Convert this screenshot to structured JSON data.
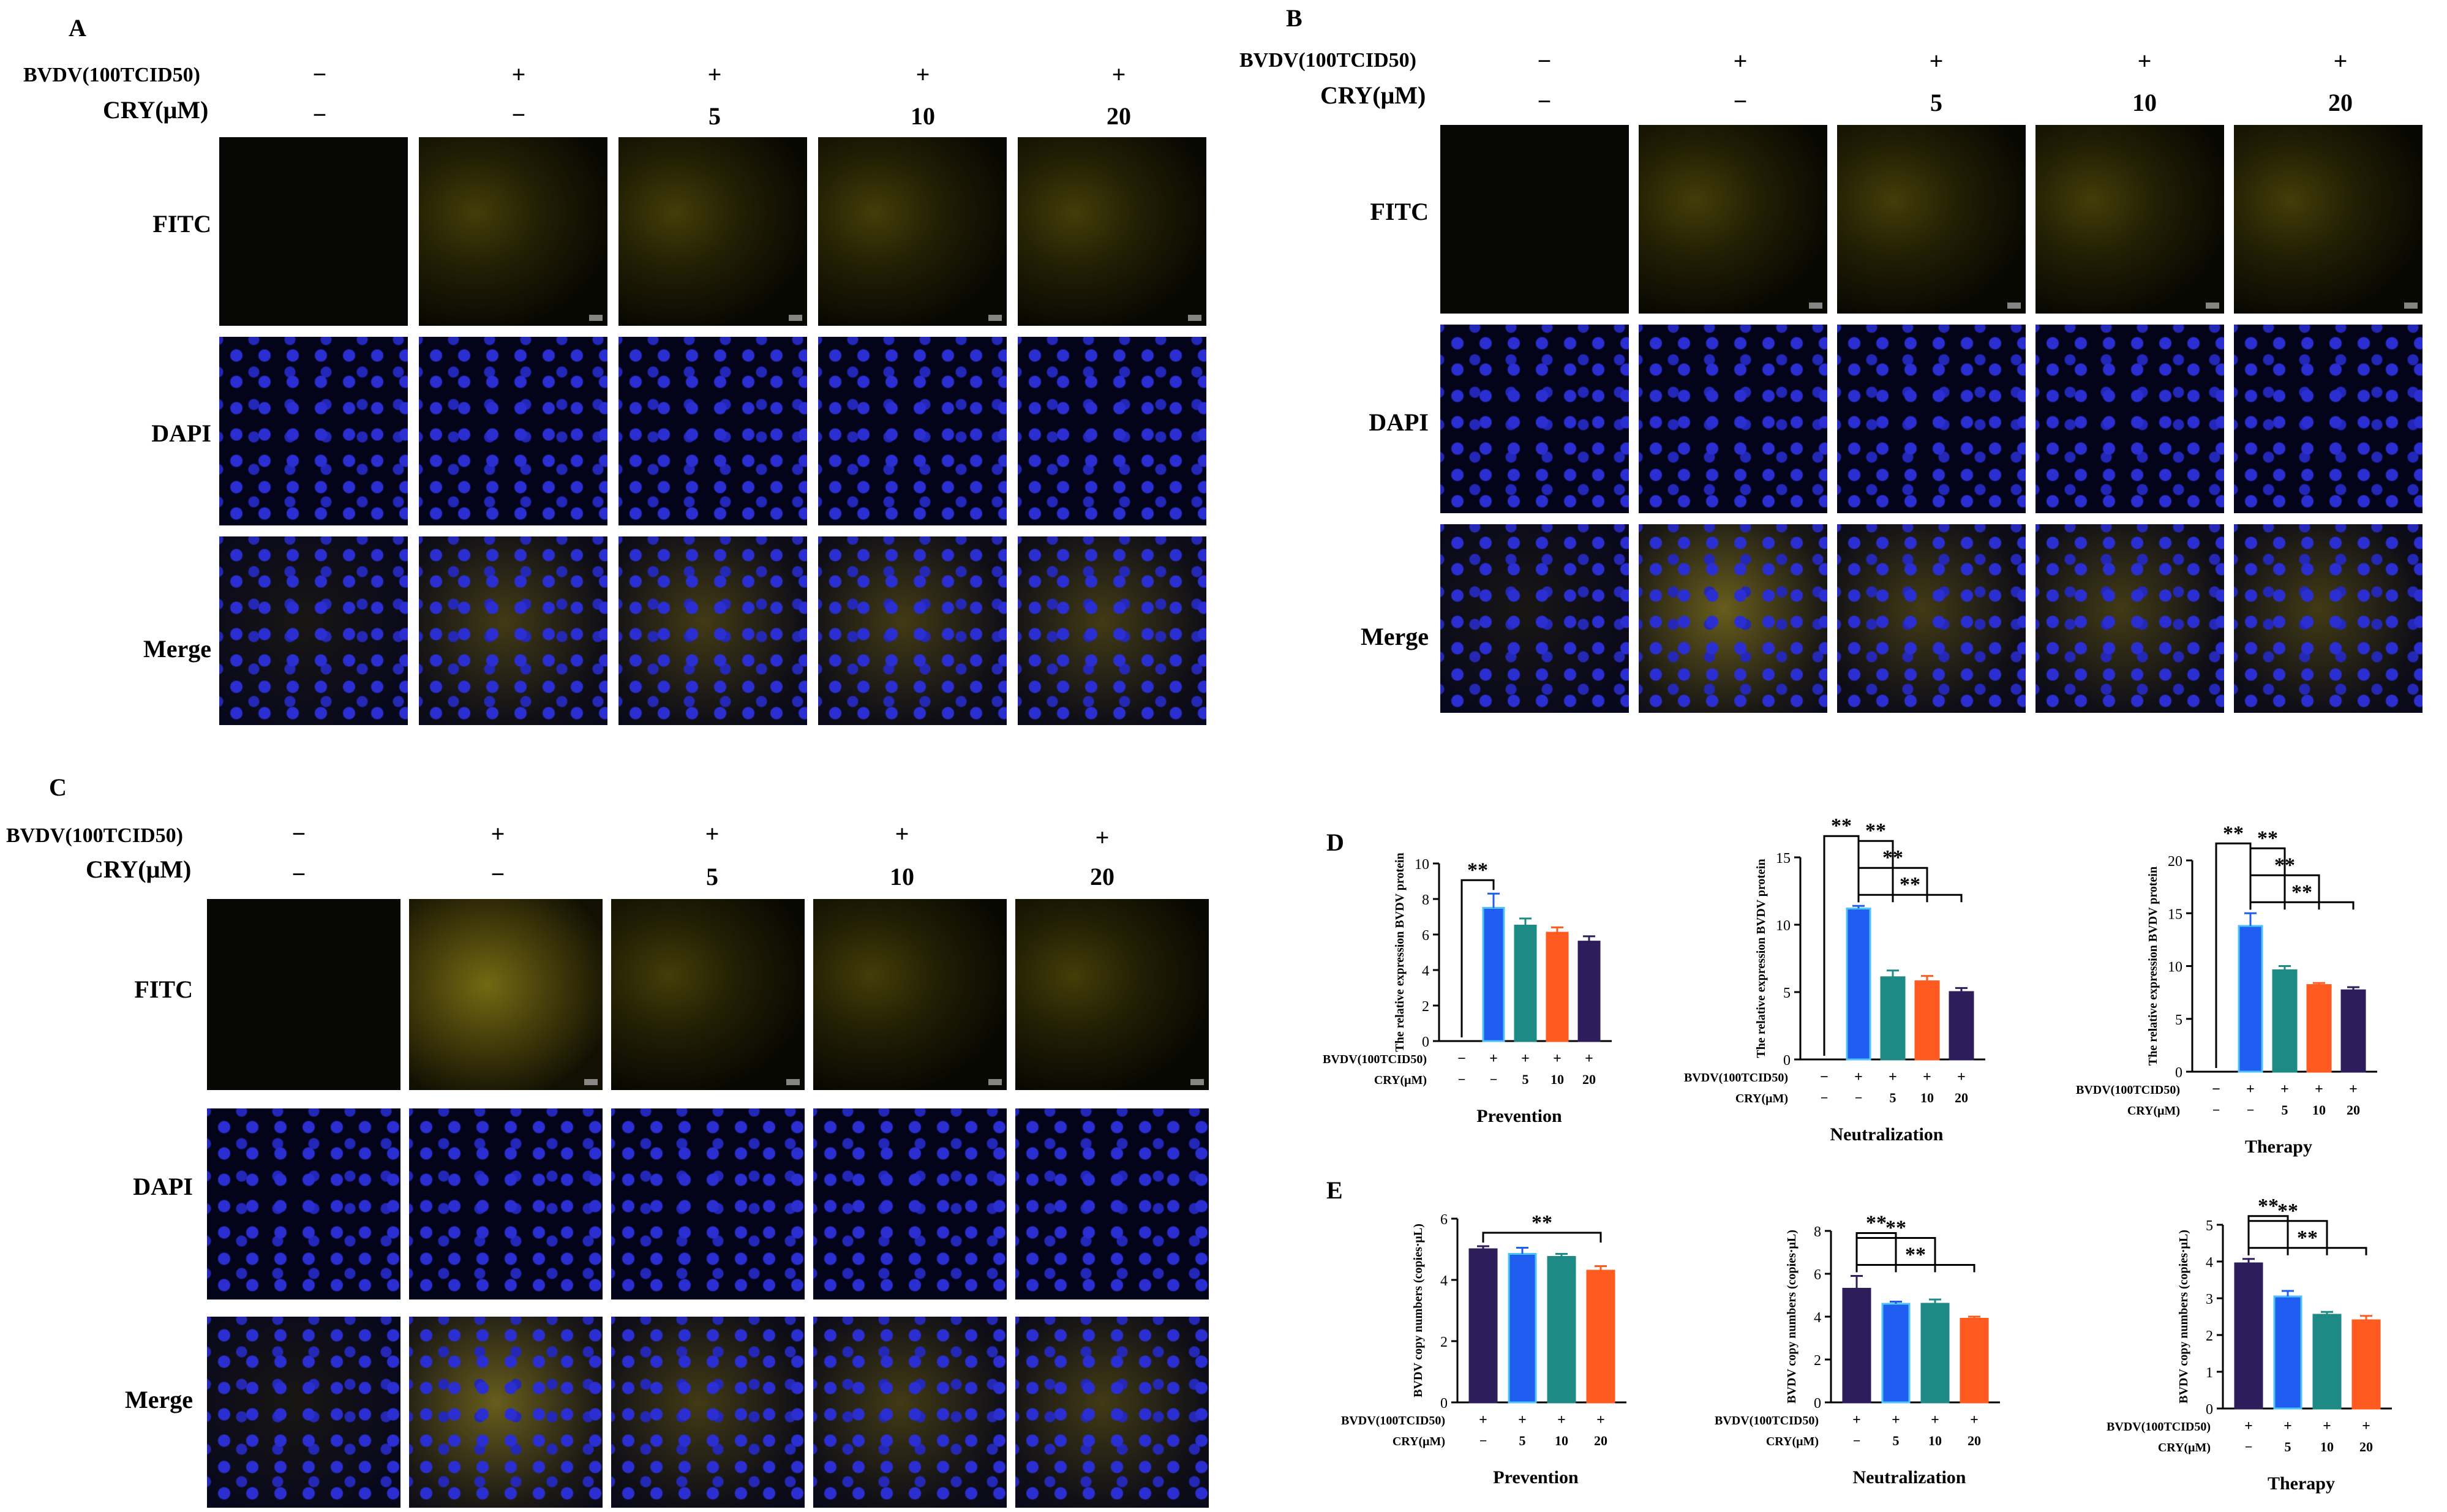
{
  "panels": {
    "A": {
      "label": "A",
      "virus_label": "BVDV(100TCID50)",
      "cry_label": "CRY(μM)"
    },
    "B": {
      "label": "B",
      "virus_label": "BVDV(100TCID50)",
      "cry_label": "CRY(μM)"
    },
    "C": {
      "label": "C",
      "virus_label": "BVDV(100TCID50)",
      "cry_label": "CRY(μM)"
    }
  },
  "virus_signs": [
    "−",
    "+",
    "+",
    "+",
    "+"
  ],
  "cry_signs": [
    "−",
    "−",
    "5",
    "10",
    "20"
  ],
  "row_labels": [
    "FITC",
    "DAPI",
    "Merge"
  ],
  "panel_D_label": "D",
  "panel_E_label": "E",
  "colors": {
    "blue": "#1f5ef0",
    "teal": "#1d8a86",
    "orange": "#ff5a1f",
    "purple": "#2d1d5a",
    "light_blue_outline": "#4fc3f7"
  },
  "chart_data": [
    {
      "type": "bar",
      "panel": "D",
      "title": "Prevention",
      "ylabel": "The relative expression BVDV protein",
      "ylim": [
        0,
        10
      ],
      "yticks": [
        0,
        2,
        4,
        6,
        8,
        10
      ],
      "row1_label": "BVDV(100TCID50)",
      "row2_label": "CRY(μM)",
      "row1": [
        "−",
        "+",
        "+",
        "+",
        "+"
      ],
      "row2": [
        "−",
        "−",
        "5",
        "10",
        "20"
      ],
      "values": [
        0,
        7.5,
        6.5,
        6.1,
        5.6
      ],
      "errors": [
        0,
        0.8,
        0.4,
        0.3,
        0.3
      ],
      "bar_colors": [
        "#1f5ef0",
        "#1f5ef0",
        "#1d8a86",
        "#ff5a1f",
        "#2d1d5a"
      ],
      "significance": [
        {
          "from": 0,
          "to": 1,
          "label": "**"
        }
      ]
    },
    {
      "type": "bar",
      "panel": "D",
      "title": "Neutralization",
      "ylabel": "The relative expression BVDV protein",
      "ylim": [
        0,
        15
      ],
      "yticks": [
        0,
        5,
        10,
        15
      ],
      "row1_label": "BVDV(100TCID50)",
      "row2_label": "CRY(μM)",
      "row1": [
        "−",
        "+",
        "+",
        "+",
        "+"
      ],
      "row2": [
        "−",
        "−",
        "5",
        "10",
        "20"
      ],
      "values": [
        0,
        11.2,
        6.1,
        5.8,
        5.0
      ],
      "errors": [
        0,
        0.2,
        0.5,
        0.4,
        0.3
      ],
      "bar_colors": [
        "#1f5ef0",
        "#1f5ef0",
        "#1d8a86",
        "#ff5a1f",
        "#2d1d5a"
      ],
      "significance": [
        {
          "from": 0,
          "to": 1,
          "label": "**"
        },
        {
          "from": 1,
          "to": 2,
          "label": "**"
        },
        {
          "from": 1,
          "to": 3,
          "label": "**"
        },
        {
          "from": 1,
          "to": 4,
          "label": "**"
        }
      ]
    },
    {
      "type": "bar",
      "panel": "D",
      "title": "Therapy",
      "ylabel": "The relative expression BVDV protein",
      "ylim": [
        0,
        20
      ],
      "yticks": [
        0,
        5,
        10,
        15,
        20
      ],
      "row1_label": "BVDV(100TCID50)",
      "row2_label": "CRY(μM)",
      "row1": [
        "−",
        "+",
        "+",
        "+",
        "+"
      ],
      "row2": [
        "−",
        "−",
        "5",
        "10",
        "20"
      ],
      "values": [
        0,
        13.8,
        9.6,
        8.2,
        7.7
      ],
      "errors": [
        0,
        1.2,
        0.4,
        0.2,
        0.3
      ],
      "bar_colors": [
        "#1f5ef0",
        "#1f5ef0",
        "#1d8a86",
        "#ff5a1f",
        "#2d1d5a"
      ],
      "significance": [
        {
          "from": 0,
          "to": 1,
          "label": "**"
        },
        {
          "from": 1,
          "to": 2,
          "label": "**"
        },
        {
          "from": 1,
          "to": 3,
          "label": "**"
        },
        {
          "from": 1,
          "to": 4,
          "label": "**"
        }
      ]
    },
    {
      "type": "bar",
      "panel": "E",
      "title": "Prevention",
      "ylabel": "BVDV copy numbers (copies·μL)",
      "ylim": [
        0,
        6
      ],
      "yticks": [
        0,
        2,
        4,
        6
      ],
      "row1_label": "BVDV(100TCID50)",
      "row2_label": "CRY(μM)",
      "row1": [
        "+",
        "+",
        "+",
        "+"
      ],
      "row2": [
        "−",
        "5",
        "10",
        "20"
      ],
      "values": [
        5.0,
        4.85,
        4.75,
        4.3
      ],
      "errors": [
        0.1,
        0.2,
        0.1,
        0.15
      ],
      "bar_colors": [
        "#2d1d5a",
        "#1f5ef0",
        "#1d8a86",
        "#ff5a1f"
      ],
      "significance": [
        {
          "from": 0,
          "to": 3,
          "label": "**"
        }
      ]
    },
    {
      "type": "bar",
      "panel": "E",
      "title": "Neutralization",
      "ylabel": "BVDV copy numbers (copies·μL)",
      "ylim": [
        0,
        8
      ],
      "yticks": [
        0,
        2,
        4,
        6,
        8
      ],
      "row1_label": "BVDV(100TCID50)",
      "row2_label": "CRY(μM)",
      "row1": [
        "+",
        "+",
        "+",
        "+"
      ],
      "row2": [
        "−",
        "5",
        "10",
        "20"
      ],
      "values": [
        5.3,
        4.6,
        4.6,
        3.9
      ],
      "errors": [
        0.6,
        0.1,
        0.2,
        0.1
      ],
      "bar_colors": [
        "#2d1d5a",
        "#1f5ef0",
        "#1d8a86",
        "#ff5a1f"
      ],
      "significance": [
        {
          "from": 0,
          "to": 1,
          "label": "**"
        },
        {
          "from": 0,
          "to": 2,
          "label": "**"
        },
        {
          "from": 0,
          "to": 3,
          "label": "**"
        }
      ]
    },
    {
      "type": "bar",
      "panel": "E",
      "title": "Therapy",
      "ylabel": "BVDV copy numbers (copies·μL)",
      "ylim": [
        0,
        5
      ],
      "yticks": [
        0,
        1,
        2,
        3,
        4,
        5
      ],
      "row1_label": "BVDV(100TCID50)",
      "row2_label": "CRY(μM)",
      "row1": [
        "+",
        "+",
        "+",
        "+"
      ],
      "row2": [
        "−",
        "5",
        "10",
        "20"
      ],
      "values": [
        3.95,
        3.05,
        2.55,
        2.4
      ],
      "errors": [
        0.12,
        0.15,
        0.08,
        0.12
      ],
      "bar_colors": [
        "#2d1d5a",
        "#1f5ef0",
        "#1d8a86",
        "#ff5a1f"
      ],
      "significance": [
        {
          "from": 0,
          "to": 1,
          "label": "**"
        },
        {
          "from": 0,
          "to": 2,
          "label": "**"
        },
        {
          "from": 0,
          "to": 3,
          "label": "**"
        }
      ]
    }
  ]
}
